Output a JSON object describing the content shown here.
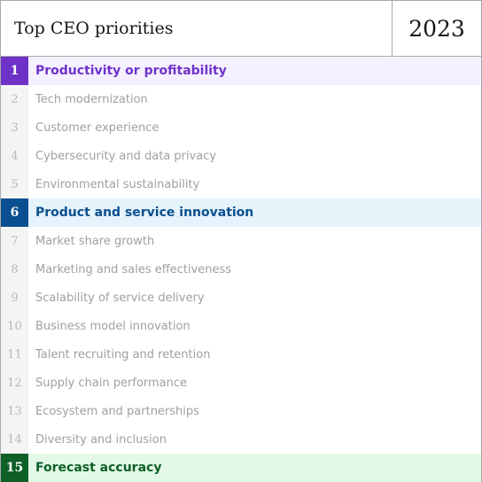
{
  "header": {
    "title": "Top CEO priorities",
    "year": "2023"
  },
  "priorities": [
    {
      "rank": "1",
      "label": "Productivity or profitability",
      "highlight": true,
      "accent": "#6e32c9",
      "text_color": "#6e32c9",
      "bg": "#f5f0ff"
    },
    {
      "rank": "2",
      "label": "Tech modernization",
      "highlight": false
    },
    {
      "rank": "3",
      "label": "Customer experience",
      "highlight": false
    },
    {
      "rank": "4",
      "label": "Cybersecurity and data privacy",
      "highlight": false
    },
    {
      "rank": "5",
      "label": "Environmental sustainability",
      "highlight": false
    },
    {
      "rank": "6",
      "label": "Product and service innovation",
      "highlight": true,
      "accent": "#0a4f8f",
      "text_color": "#0a4f8f",
      "bg": "#e5f3fb"
    },
    {
      "rank": "7",
      "label": "Market share growth",
      "highlight": false
    },
    {
      "rank": "8",
      "label": "Marketing and sales effectiveness",
      "highlight": false
    },
    {
      "rank": "9",
      "label": "Scalability of service delivery",
      "highlight": false
    },
    {
      "rank": "10",
      "label": "Business model innovation",
      "highlight": false
    },
    {
      "rank": "11",
      "label": "Talent recruiting and retention",
      "highlight": false
    },
    {
      "rank": "12",
      "label": "Supply chain performance",
      "highlight": false
    },
    {
      "rank": "13",
      "label": "Ecosystem and partnerships",
      "highlight": false
    },
    {
      "rank": "14",
      "label": "Diversity and inclusion",
      "highlight": false
    },
    {
      "rank": "15",
      "label": "Forecast accuracy",
      "highlight": true,
      "accent": "#0e6027",
      "text_color": "#0e6027",
      "bg": "#e3f8e7"
    }
  ]
}
